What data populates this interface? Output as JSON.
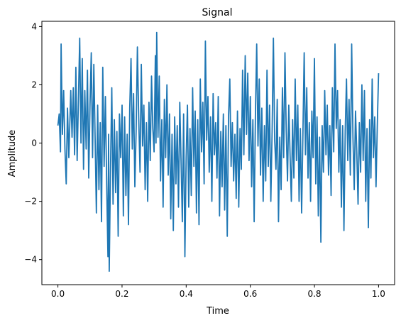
{
  "chart_data": {
    "type": "line",
    "title": "Signal",
    "xlabel": "Time",
    "ylabel": "Amplitude",
    "xlim": [
      -0.05,
      1.05
    ],
    "ylim": [
      -4.86,
      4.18
    ],
    "xticks": [
      0.0,
      0.2,
      0.4,
      0.6,
      0.8,
      1.0
    ],
    "xtick_labels": [
      "0.0",
      "0.2",
      "0.4",
      "0.6",
      "0.8",
      "1.0"
    ],
    "yticks": [
      -4,
      -2,
      0,
      2,
      4
    ],
    "ytick_labels": [
      "−4",
      "−2",
      "0",
      "2",
      "4"
    ],
    "grid": false,
    "legend": "none",
    "series": [
      {
        "color": "#1f77b4",
        "points": [
          [
            0.0,
            0.6
          ],
          [
            0.004,
            1.0
          ],
          [
            0.008,
            -0.3
          ],
          [
            0.01,
            3.4
          ],
          [
            0.014,
            0.3
          ],
          [
            0.018,
            1.8
          ],
          [
            0.022,
            -0.2
          ],
          [
            0.026,
            -1.4
          ],
          [
            0.03,
            1.2
          ],
          [
            0.034,
            -0.5
          ],
          [
            0.04,
            1.8
          ],
          [
            0.044,
            0.2
          ],
          [
            0.048,
            1.9
          ],
          [
            0.052,
            -0.4
          ],
          [
            0.056,
            2.6
          ],
          [
            0.06,
            -0.6
          ],
          [
            0.064,
            1.5
          ],
          [
            0.068,
            3.6
          ],
          [
            0.072,
            0.0
          ],
          [
            0.076,
            2.9
          ],
          [
            0.08,
            -0.9
          ],
          [
            0.084,
            1.8
          ],
          [
            0.088,
            -0.2
          ],
          [
            0.092,
            2.5
          ],
          [
            0.096,
            -1.2
          ],
          [
            0.1,
            1.3
          ],
          [
            0.104,
            3.1
          ],
          [
            0.108,
            -0.5
          ],
          [
            0.112,
            2.7
          ],
          [
            0.116,
            0.2
          ],
          [
            0.12,
            -2.4
          ],
          [
            0.124,
            1.3
          ],
          [
            0.128,
            -1.6
          ],
          [
            0.132,
            0.7
          ],
          [
            0.136,
            -2.7
          ],
          [
            0.14,
            2.6
          ],
          [
            0.144,
            -0.8
          ],
          [
            0.148,
            1.6
          ],
          [
            0.152,
            -1.4
          ],
          [
            0.156,
            -3.9
          ],
          [
            0.158,
            0.3
          ],
          [
            0.16,
            -4.4
          ],
          [
            0.164,
            -0.9
          ],
          [
            0.168,
            1.9
          ],
          [
            0.172,
            -2.1
          ],
          [
            0.176,
            0.8
          ],
          [
            0.18,
            -1.7
          ],
          [
            0.184,
            0.4
          ],
          [
            0.188,
            -3.2
          ],
          [
            0.192,
            1.0
          ],
          [
            0.196,
            -0.5
          ],
          [
            0.2,
            1.3
          ],
          [
            0.204,
            -2.5
          ],
          [
            0.208,
            0.9
          ],
          [
            0.212,
            -1.8
          ],
          [
            0.216,
            0.3
          ],
          [
            0.22,
            -2.8
          ],
          [
            0.224,
            1.2
          ],
          [
            0.228,
            2.9
          ],
          [
            0.232,
            -0.2
          ],
          [
            0.236,
            1.7
          ],
          [
            0.24,
            -1.5
          ],
          [
            0.244,
            0.4
          ],
          [
            0.248,
            3.3
          ],
          [
            0.252,
            0.9
          ],
          [
            0.256,
            -1.0
          ],
          [
            0.26,
            2.7
          ],
          [
            0.264,
            -0.1
          ],
          [
            0.268,
            1.3
          ],
          [
            0.272,
            -1.6
          ],
          [
            0.276,
            0.7
          ],
          [
            0.28,
            -2.0
          ],
          [
            0.284,
            1.4
          ],
          [
            0.288,
            -0.6
          ],
          [
            0.292,
            2.3
          ],
          [
            0.296,
            0.5
          ],
          [
            0.3,
            -0.3
          ],
          [
            0.304,
            3.0
          ],
          [
            0.306,
            0.0
          ],
          [
            0.308,
            3.8
          ],
          [
            0.312,
            0.2
          ],
          [
            0.316,
            2.3
          ],
          [
            0.32,
            -1.3
          ],
          [
            0.324,
            0.8
          ],
          [
            0.328,
            -2.2
          ],
          [
            0.332,
            1.5
          ],
          [
            0.336,
            -0.5
          ],
          [
            0.34,
            2.0
          ],
          [
            0.344,
            -1.1
          ],
          [
            0.348,
            1.0
          ],
          [
            0.352,
            -2.6
          ],
          [
            0.356,
            0.3
          ],
          [
            0.36,
            -3.0
          ],
          [
            0.364,
            0.9
          ],
          [
            0.368,
            -1.4
          ],
          [
            0.372,
            0.6
          ],
          [
            0.376,
            -2.2
          ],
          [
            0.38,
            1.4
          ],
          [
            0.384,
            -0.6
          ],
          [
            0.388,
            -2.7
          ],
          [
            0.392,
            1.0
          ],
          [
            0.396,
            -3.9
          ],
          [
            0.4,
            -0.5
          ],
          [
            0.404,
            1.3
          ],
          [
            0.408,
            -2.2
          ],
          [
            0.412,
            0.5
          ],
          [
            0.416,
            -1.8
          ],
          [
            0.42,
            1.9
          ],
          [
            0.424,
            -0.8
          ],
          [
            0.428,
            1.1
          ],
          [
            0.432,
            -2.4
          ],
          [
            0.436,
            0.8
          ],
          [
            0.44,
            -2.8
          ],
          [
            0.444,
            2.2
          ],
          [
            0.448,
            -0.3
          ],
          [
            0.452,
            1.4
          ],
          [
            0.456,
            -1.4
          ],
          [
            0.46,
            3.5
          ],
          [
            0.464,
            0.1
          ],
          [
            0.468,
            1.6
          ],
          [
            0.472,
            -1.0
          ],
          [
            0.476,
            0.9
          ],
          [
            0.48,
            -2.0
          ],
          [
            0.484,
            1.7
          ],
          [
            0.488,
            -0.4
          ],
          [
            0.492,
            0.7
          ],
          [
            0.496,
            -1.2
          ],
          [
            0.5,
            1.6
          ],
          [
            0.504,
            -2.5
          ],
          [
            0.508,
            0.4
          ],
          [
            0.512,
            -1.5
          ],
          [
            0.516,
            1.0
          ],
          [
            0.52,
            -2.3
          ],
          [
            0.524,
            0.6
          ],
          [
            0.528,
            -3.2
          ],
          [
            0.532,
            0.9
          ],
          [
            0.536,
            2.2
          ],
          [
            0.54,
            -0.8
          ],
          [
            0.544,
            0.7
          ],
          [
            0.548,
            -1.3
          ],
          [
            0.552,
            0.3
          ],
          [
            0.556,
            -1.9
          ],
          [
            0.56,
            1.1
          ],
          [
            0.564,
            -2.2
          ],
          [
            0.568,
            0.5
          ],
          [
            0.572,
            -0.9
          ],
          [
            0.576,
            2.5
          ],
          [
            0.58,
            -0.4
          ],
          [
            0.584,
            3.0
          ],
          [
            0.588,
            0.3
          ],
          [
            0.592,
            2.4
          ],
          [
            0.596,
            -0.6
          ],
          [
            0.6,
            1.6
          ],
          [
            0.604,
            -1.5
          ],
          [
            0.608,
            0.8
          ],
          [
            0.612,
            -2.7
          ],
          [
            0.616,
            1.0
          ],
          [
            0.62,
            3.4
          ],
          [
            0.624,
            -0.1
          ],
          [
            0.628,
            2.2
          ],
          [
            0.632,
            -1.1
          ],
          [
            0.636,
            1.2
          ],
          [
            0.64,
            -2.0
          ],
          [
            0.644,
            0.6
          ],
          [
            0.648,
            -1.3
          ],
          [
            0.652,
            2.5
          ],
          [
            0.656,
            -0.8
          ],
          [
            0.66,
            1.3
          ],
          [
            0.664,
            -2.0
          ],
          [
            0.668,
            0.4
          ],
          [
            0.672,
            3.6
          ],
          [
            0.676,
            0.1
          ],
          [
            0.68,
            -0.9
          ],
          [
            0.684,
            1.5
          ],
          [
            0.688,
            -2.7
          ],
          [
            0.692,
            0.2
          ],
          [
            0.696,
            -1.6
          ],
          [
            0.7,
            1.9
          ],
          [
            0.704,
            -0.5
          ],
          [
            0.708,
            3.1
          ],
          [
            0.712,
            0.4
          ],
          [
            0.716,
            -1.3
          ],
          [
            0.72,
            1.3
          ],
          [
            0.724,
            -0.4
          ],
          [
            0.728,
            -2.0
          ],
          [
            0.732,
            0.8
          ],
          [
            0.736,
            -1.2
          ],
          [
            0.74,
            2.2
          ],
          [
            0.744,
            -0.6
          ],
          [
            0.748,
            1.3
          ],
          [
            0.752,
            -2.0
          ],
          [
            0.756,
            0.5
          ],
          [
            0.76,
            -2.4
          ],
          [
            0.764,
            0.3
          ],
          [
            0.768,
            3.1
          ],
          [
            0.772,
            -0.4
          ],
          [
            0.776,
            1.9
          ],
          [
            0.78,
            -1.2
          ],
          [
            0.784,
            0.7
          ],
          [
            0.788,
            -2.0
          ],
          [
            0.792,
            1.1
          ],
          [
            0.796,
            -0.5
          ],
          [
            0.8,
            2.9
          ],
          [
            0.804,
            -1.4
          ],
          [
            0.808,
            0.9
          ],
          [
            0.812,
            -2.5
          ],
          [
            0.816,
            0.2
          ],
          [
            0.82,
            -3.4
          ],
          [
            0.824,
            0.6
          ],
          [
            0.828,
            -1.0
          ],
          [
            0.832,
            1.8
          ],
          [
            0.836,
            -0.4
          ],
          [
            0.84,
            1.3
          ],
          [
            0.844,
            -1.1
          ],
          [
            0.848,
            0.6
          ],
          [
            0.852,
            -1.8
          ],
          [
            0.856,
            1.9
          ],
          [
            0.86,
            -0.3
          ],
          [
            0.864,
            3.4
          ],
          [
            0.868,
            0.5
          ],
          [
            0.872,
            1.8
          ],
          [
            0.876,
            -1.0
          ],
          [
            0.88,
            0.8
          ],
          [
            0.884,
            -2.2
          ],
          [
            0.888,
            0.6
          ],
          [
            0.892,
            -3.0
          ],
          [
            0.896,
            0.4
          ],
          [
            0.9,
            2.2
          ],
          [
            0.904,
            -0.6
          ],
          [
            0.908,
            1.5
          ],
          [
            0.912,
            -1.1
          ],
          [
            0.916,
            3.4
          ],
          [
            0.92,
            0.2
          ],
          [
            0.924,
            -1.6
          ],
          [
            0.928,
            1.1
          ],
          [
            0.932,
            -0.3
          ],
          [
            0.936,
            -2.1
          ],
          [
            0.94,
            0.7
          ],
          [
            0.944,
            -1.0
          ],
          [
            0.948,
            2.0
          ],
          [
            0.952,
            -0.6
          ],
          [
            0.956,
            1.8
          ],
          [
            0.96,
            -2.0
          ],
          [
            0.964,
            0.5
          ],
          [
            0.968,
            -2.9
          ],
          [
            0.972,
            0.8
          ],
          [
            0.976,
            -1.2
          ],
          [
            0.98,
            2.2
          ],
          [
            0.984,
            -0.5
          ],
          [
            0.988,
            0.9
          ],
          [
            0.992,
            -1.5
          ],
          [
            0.996,
            0.6
          ],
          [
            1.0,
            2.4
          ]
        ]
      }
    ]
  }
}
